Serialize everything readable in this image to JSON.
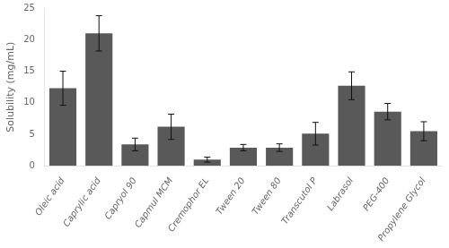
{
  "chart_data": {
    "type": "bar",
    "categories": [
      "Oleic acid",
      "Caprylic acid",
      "Capryol 90",
      "Capmul MCM",
      "Cremophor EL",
      "Tween 20",
      "Tween 80",
      "Transcutol P",
      "Labrasol",
      "PEG-400",
      "Propylene Glycol"
    ],
    "values": [
      12.3,
      21.0,
      3.4,
      6.2,
      1.0,
      2.9,
      2.9,
      5.1,
      12.7,
      8.6,
      5.5
    ],
    "errors": [
      2.7,
      2.8,
      1.0,
      2.0,
      0.4,
      0.5,
      0.6,
      1.8,
      2.2,
      1.3,
      1.5
    ],
    "color": "#595959",
    "ylabel": "Solubility (mg/mL)",
    "ylim": [
      0,
      25
    ],
    "yticks": [
      0,
      5,
      10,
      15,
      20,
      25
    ],
    "grid": false
  }
}
